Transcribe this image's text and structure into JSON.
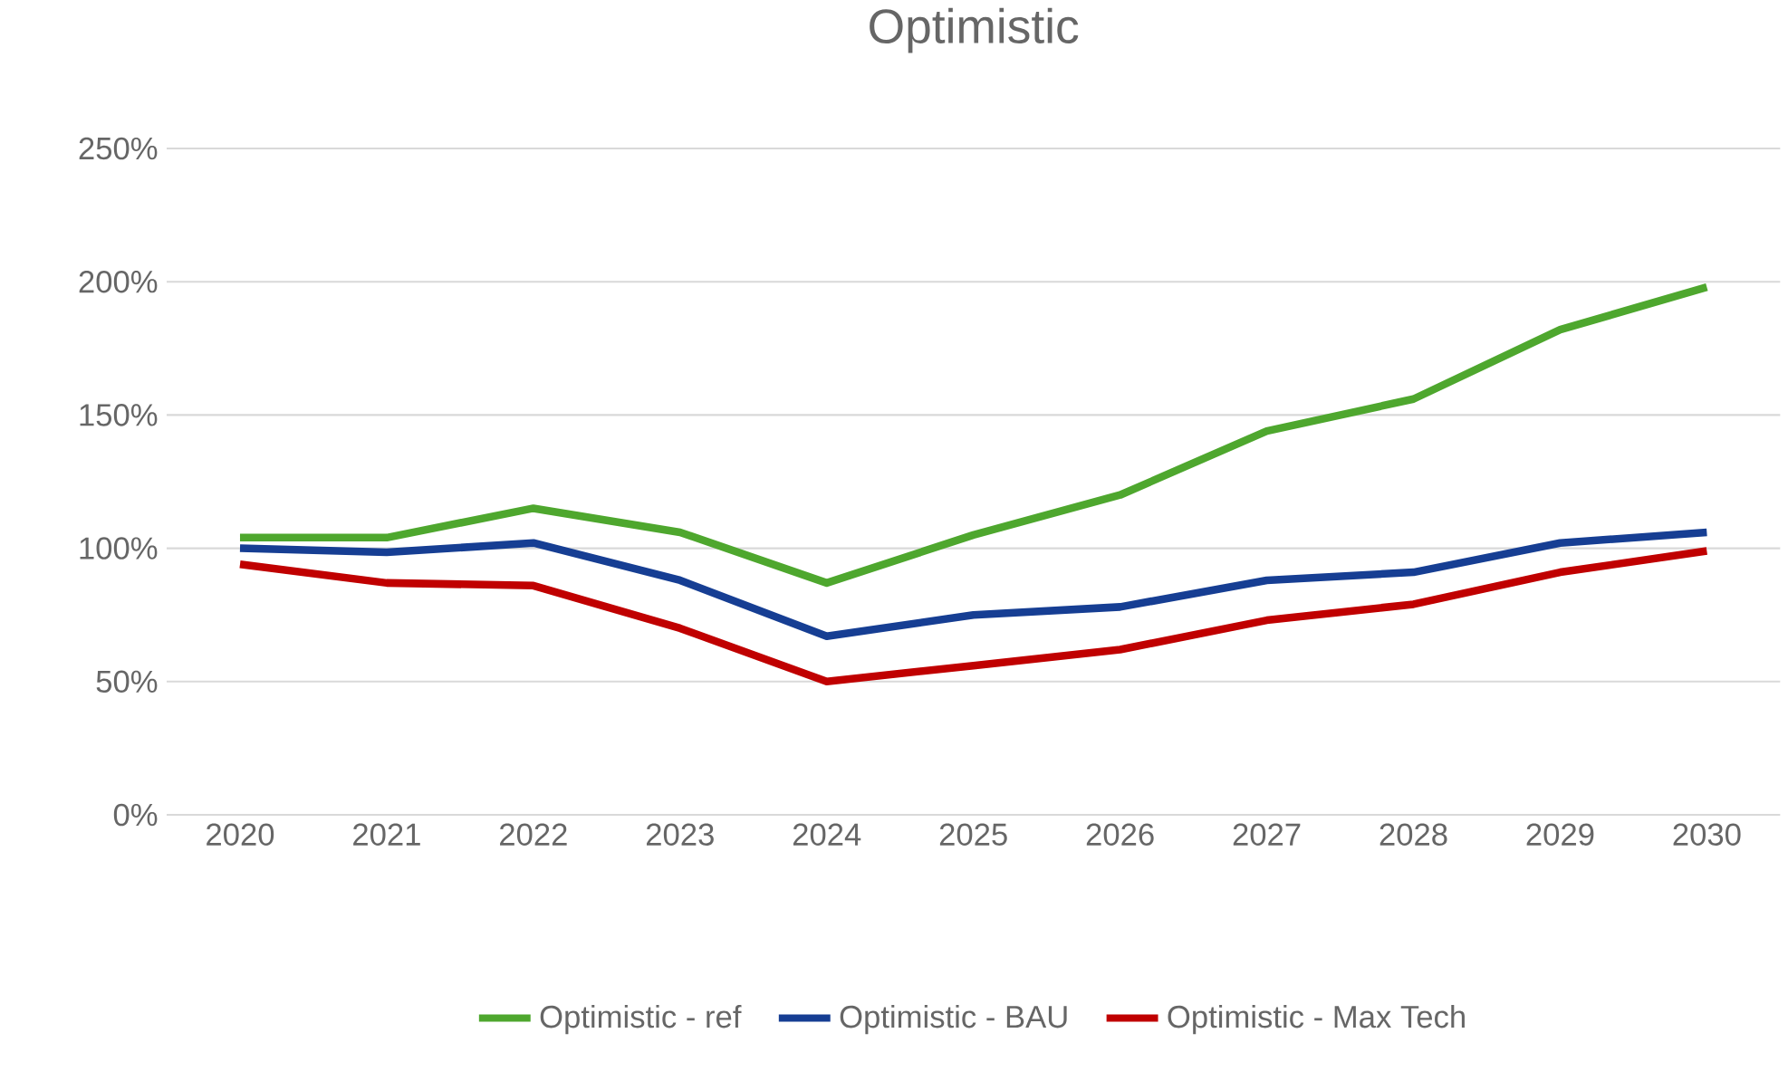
{
  "chart_data": {
    "type": "line",
    "title": "Optimistic",
    "categories": [
      "2020",
      "2021",
      "2022",
      "2023",
      "2024",
      "2025",
      "2026",
      "2027",
      "2028",
      "2029",
      "2030"
    ],
    "series": [
      {
        "name": "Optimistic - ref",
        "color": "#4ea72e",
        "values": [
          104,
          104,
          115,
          106,
          87,
          105,
          120,
          144,
          156,
          182,
          198
        ]
      },
      {
        "name": "Optimistic - BAU",
        "color": "#163e93",
        "values": [
          100,
          98.5,
          102,
          88,
          67,
          75,
          78,
          88,
          91,
          102,
          106
        ]
      },
      {
        "name": "Optimistic - Max Tech",
        "color": "#c00000",
        "values": [
          94,
          87,
          86,
          70,
          50,
          56,
          62,
          73,
          79,
          91,
          99
        ]
      }
    ],
    "ylim": [
      0,
      250
    ],
    "yticks": [
      {
        "value": 0,
        "label": "0%"
      },
      {
        "value": 50,
        "label": "50%"
      },
      {
        "value": 100,
        "label": "100%"
      },
      {
        "value": 150,
        "label": "150%"
      },
      {
        "value": 200,
        "label": "200%"
      },
      {
        "value": 250,
        "label": "250%"
      }
    ],
    "grid": "y",
    "legend": "bottom",
    "marker": "none"
  }
}
